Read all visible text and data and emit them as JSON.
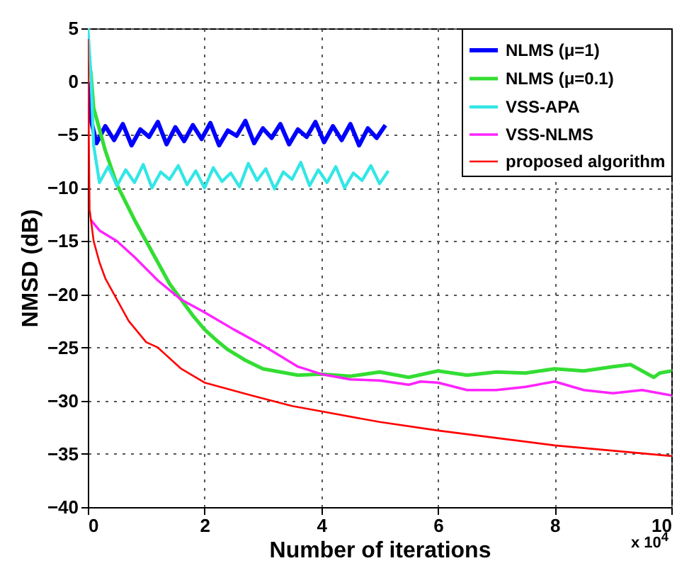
{
  "chart_data": {
    "type": "line",
    "xlabel": "Number of iterations",
    "ylabel": "NMSD (dB)",
    "annotations": [
      "x 10$^{4}$"
    ],
    "xlim": [
      0,
      10
    ],
    "xticks": [
      0,
      2,
      4,
      6,
      8,
      10
    ],
    "ylim": [
      -40,
      5
    ],
    "yticks": [
      -40,
      -35,
      -30,
      -25,
      -20,
      -15,
      -10,
      -5,
      0,
      5
    ],
    "grid": true,
    "legend": "top right",
    "line_style": "solid",
    "marker": "none",
    "series": [
      {
        "name": "NLMS (μ=1)",
        "color": "#0000ff",
        "x": [
          0,
          0.05,
          0.15,
          0.3,
          0.45,
          0.6,
          0.75,
          0.9,
          1.05,
          1.2,
          1.35,
          1.5,
          1.65,
          1.8,
          1.95,
          2.1,
          2.25,
          2.4,
          2.55,
          2.7,
          2.85,
          3,
          3.15,
          3.3,
          3.45,
          3.6,
          3.75,
          3.9,
          4.05,
          4.2,
          4.35,
          4.5,
          4.65,
          4.8,
          4.95,
          5.1
        ],
        "values": [
          0,
          -3.5,
          -5.8,
          -4.2,
          -5.5,
          -4,
          -6,
          -4.5,
          -5.2,
          -3.8,
          -5.9,
          -4.3,
          -5.6,
          -4.1,
          -5.4,
          -3.9,
          -6,
          -4.6,
          -5.1,
          -3.7,
          -5.8,
          -4.4,
          -5.3,
          -4,
          -5.9,
          -4.5,
          -5.2,
          -3.8,
          -5.7,
          -4.2,
          -5.5,
          -4,
          -6,
          -4.4,
          -5.3,
          -4.1
        ]
      },
      {
        "name": "NLMS (μ=0.1)",
        "color": "#33dd33",
        "x": [
          0.05,
          0.1,
          0.3,
          0.5,
          0.8,
          1.1,
          1.4,
          1.6,
          1.8,
          2,
          2.2,
          2.4,
          2.7,
          3,
          3.3,
          3.6,
          4,
          4.5,
          5,
          5.5,
          6,
          6.5,
          7,
          7.5,
          8,
          8.5,
          9,
          9.3,
          9.5,
          9.7,
          9.8,
          10
        ],
        "values": [
          1,
          -2.5,
          -6.5,
          -9.7,
          -13,
          -16,
          -19,
          -20.5,
          -22,
          -23.3,
          -24.3,
          -25.2,
          -26.2,
          -27,
          -27.3,
          -27.6,
          -27.5,
          -27.7,
          -27.3,
          -27.8,
          -27.2,
          -27.6,
          -27.3,
          -27.4,
          -27,
          -27.2,
          -26.8,
          -26.6,
          -27.2,
          -27.8,
          -27.4,
          -27.2
        ]
      },
      {
        "name": "VSS-APA",
        "color": "#33e6e6",
        "x": [
          0,
          0.05,
          0.1,
          0.2,
          0.35,
          0.5,
          0.65,
          0.8,
          0.95,
          1.1,
          1.25,
          1.4,
          1.55,
          1.7,
          1.85,
          2,
          2.15,
          2.3,
          2.45,
          2.6,
          2.75,
          2.9,
          3.05,
          3.2,
          3.35,
          3.5,
          3.65,
          3.8,
          3.95,
          4.1,
          4.25,
          4.4,
          4.55,
          4.7,
          4.85,
          5,
          5.15
        ],
        "values": [
          5,
          1,
          -6,
          -9.5,
          -8,
          -9.8,
          -8.3,
          -9.5,
          -7.8,
          -10,
          -8.5,
          -9.2,
          -7.9,
          -9.7,
          -8.4,
          -10,
          -8.1,
          -9.4,
          -8.6,
          -9.9,
          -7.7,
          -9.3,
          -8.2,
          -10.1,
          -8.5,
          -9.2,
          -7.6,
          -9.8,
          -8.3,
          -9.5,
          -8,
          -10,
          -8.6,
          -9.3,
          -7.9,
          -9.6,
          -8.4
        ]
      },
      {
        "name": "VSS-NLMS",
        "color": "#ff22ff",
        "x": [
          0.05,
          0.2,
          0.5,
          0.8,
          1.2,
          1.6,
          2,
          2.5,
          3,
          3.6,
          4,
          4.5,
          5,
          5.5,
          5.7,
          6,
          6.5,
          7,
          7.5,
          8,
          8.5,
          9,
          9.5,
          10
        ],
        "values": [
          -13,
          -14,
          -15,
          -16.5,
          -18.7,
          -20.5,
          -21.7,
          -23.3,
          -24.8,
          -26.8,
          -27.5,
          -28,
          -28.1,
          -28.5,
          -28.2,
          -28.3,
          -29,
          -29,
          -28.7,
          -28.2,
          -29,
          -29.3,
          -29,
          -29.5
        ]
      },
      {
        "name": "proposed algorithm",
        "color": "#ff0000",
        "x": [
          0,
          0.03,
          0.1,
          0.2,
          0.3,
          0.45,
          0.7,
          1,
          1.2,
          1.6,
          2,
          2.4,
          2.8,
          3.5,
          4,
          5,
          6,
          7,
          8,
          9,
          10
        ],
        "values": [
          4,
          -12,
          -15,
          -17,
          -18.5,
          -20,
          -22.5,
          -24.5,
          -25,
          -27,
          -28.3,
          -28.9,
          -29.5,
          -30.5,
          -31,
          -32,
          -32.8,
          -33.5,
          -34.2,
          -34.7,
          -35.2
        ]
      }
    ]
  }
}
